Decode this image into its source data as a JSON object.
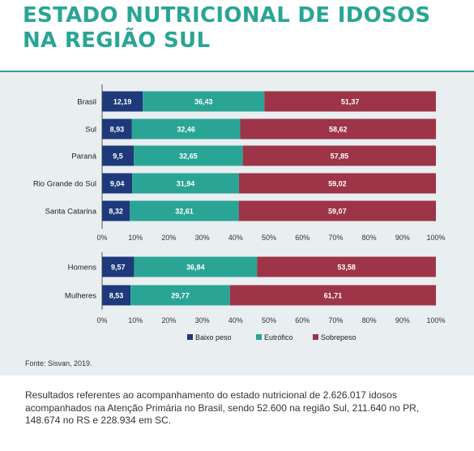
{
  "title": "ESTADO NUTRICIONAL DE IDOSOS NA REGIÃO SUL",
  "source": "Fonte: Sisvan, 2019.",
  "footnote": "Resultados referentes ao acompanhamento do estado nutricional de 2.626.017 idosos acompanhados na Atenção Primária no Brasil, sendo 52.600 na região Sul, 211.640 no PR, 148.674 no RS e 228.934 em SC.",
  "colors": {
    "baixo": "#1e3a7b",
    "eutrofico": "#2aa595",
    "sobrepeso": "#9d3448",
    "title": "#2aa595"
  },
  "chart_data": [
    {
      "type": "bar",
      "orientation": "horizontal",
      "stacked": true,
      "categories": [
        "Brasil",
        "Sul",
        "Paraná",
        "Rio Grande do Sul",
        "Santa Catarina"
      ],
      "series": [
        {
          "name": "Baixo peso",
          "values": [
            12.19,
            8.93,
            9.5,
            9.04,
            8.32
          ],
          "labels": [
            "12,19",
            "8,93",
            "9,5",
            "9,04",
            "8,32"
          ]
        },
        {
          "name": "Eutrófico",
          "values": [
            36.43,
            32.46,
            32.65,
            31.94,
            32.61
          ],
          "labels": [
            "36,43",
            "32,46",
            "32,65",
            "31,94",
            "32,61"
          ]
        },
        {
          "name": "Sobrepeso",
          "values": [
            51.37,
            58.62,
            57.85,
            59.02,
            59.07
          ],
          "labels": [
            "51,37",
            "58,62",
            "57,85",
            "59,02",
            "59,07"
          ]
        }
      ],
      "xlim": [
        0,
        100
      ],
      "xticks": [
        "0%",
        "10%",
        "20%",
        "30%",
        "40%",
        "50%",
        "60%",
        "70%",
        "80%",
        "90%",
        "100%"
      ]
    },
    {
      "type": "bar",
      "orientation": "horizontal",
      "stacked": true,
      "categories": [
        "Homens",
        "Mulheres"
      ],
      "series": [
        {
          "name": "Baixo peso",
          "values": [
            9.57,
            8.53
          ],
          "labels": [
            "9,57",
            "8,53"
          ]
        },
        {
          "name": "Eutrófico",
          "values": [
            36.84,
            29.77
          ],
          "labels": [
            "36,84",
            "29,77"
          ]
        },
        {
          "name": "Sobrepeso",
          "values": [
            53.58,
            61.71
          ],
          "labels": [
            "53,58",
            "61,71"
          ]
        }
      ],
      "xlim": [
        0,
        100
      ],
      "xticks": [
        "0%",
        "10%",
        "20%",
        "30%",
        "40%",
        "50%",
        "60%",
        "70%",
        "80%",
        "90%",
        "100%"
      ],
      "legend": {
        "position": "bottom",
        "entries": [
          "Baixo peso",
          "Eutrófico",
          "Sobrepeso"
        ]
      }
    }
  ]
}
